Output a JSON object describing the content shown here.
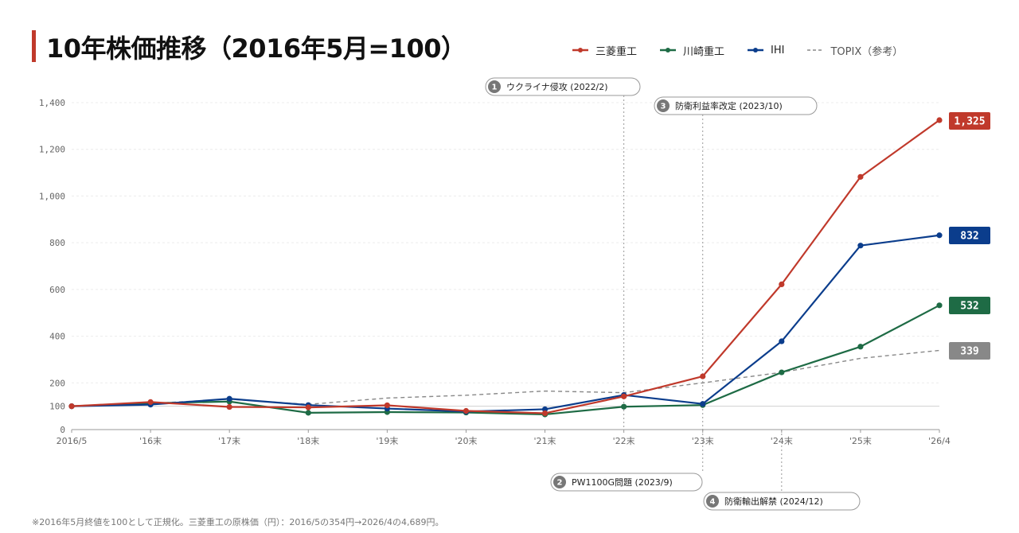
{
  "header": {
    "title": "10年株価推移（2016年5月=100）"
  },
  "legend": [
    {
      "name": "三菱重工",
      "color": "#c0392b",
      "style": "solid"
    },
    {
      "name": "川崎重工",
      "color": "#1e6b45",
      "style": "solid"
    },
    {
      "name": "IHI",
      "color": "#0b3d8c",
      "style": "solid"
    },
    {
      "name": "TOPIX（参考）",
      "color": "#888888",
      "style": "dashed"
    }
  ],
  "footnote": "※2016年5月終値を100として正規化。三菱重工の原株価（円）：2016/5の354円→2026/4の4,689円。",
  "chart_data": {
    "type": "line",
    "categories": [
      "2016/5",
      "'16末",
      "'17末",
      "'18末",
      "'19末",
      "'20末",
      "'21末",
      "'22末",
      "'23末",
      "'24末",
      "'25末",
      "'26/4"
    ],
    "y_ticks": [
      0,
      100,
      200,
      400,
      600,
      800,
      "1,000",
      "1,200",
      "1,400"
    ],
    "y_tick_values": [
      0,
      100,
      200,
      400,
      600,
      800,
      1000,
      1200,
      1400
    ],
    "ylim": [
      0,
      1400
    ],
    "grid": true,
    "series": [
      {
        "name": "TOPIX（参考）",
        "color": "#888888",
        "dashed": true,
        "markers": false,
        "values": [
          100,
          112,
          130,
          108,
          135,
          147,
          165,
          158,
          200,
          245,
          305,
          339
        ],
        "end_label": "339"
      },
      {
        "name": "川崎重工",
        "color": "#1e6b45",
        "dashed": false,
        "markers": true,
        "values": [
          100,
          113,
          120,
          72,
          75,
          73,
          65,
          98,
          105,
          245,
          355,
          532
        ],
        "end_label": "532"
      },
      {
        "name": "IHI",
        "color": "#0b3d8c",
        "dashed": false,
        "markers": true,
        "values": [
          100,
          107,
          132,
          105,
          90,
          77,
          87,
          148,
          110,
          378,
          788,
          832
        ],
        "end_label": "832"
      },
      {
        "name": "三菱重工",
        "color": "#c0392b",
        "dashed": false,
        "markers": true,
        "values": [
          100,
          118,
          97,
          95,
          104,
          80,
          70,
          142,
          228,
          622,
          1082,
          1325
        ],
        "end_label": "1,325"
      }
    ],
    "annotations": [
      {
        "num": "1",
        "label": "ウクライナ侵攻 (2022/2)",
        "x_index": 7,
        "position": "top"
      },
      {
        "num": "2",
        "label": "PW1100G問題 (2023/9)",
        "x_index": 8,
        "position": "bottom"
      },
      {
        "num": "3",
        "label": "防衛利益率改定 (2023/10)",
        "x_index": 8,
        "position": "top"
      },
      {
        "num": "4",
        "label": "防衛輸出解禁 (2024/12)",
        "x_index": 9,
        "position": "bottom"
      }
    ]
  }
}
